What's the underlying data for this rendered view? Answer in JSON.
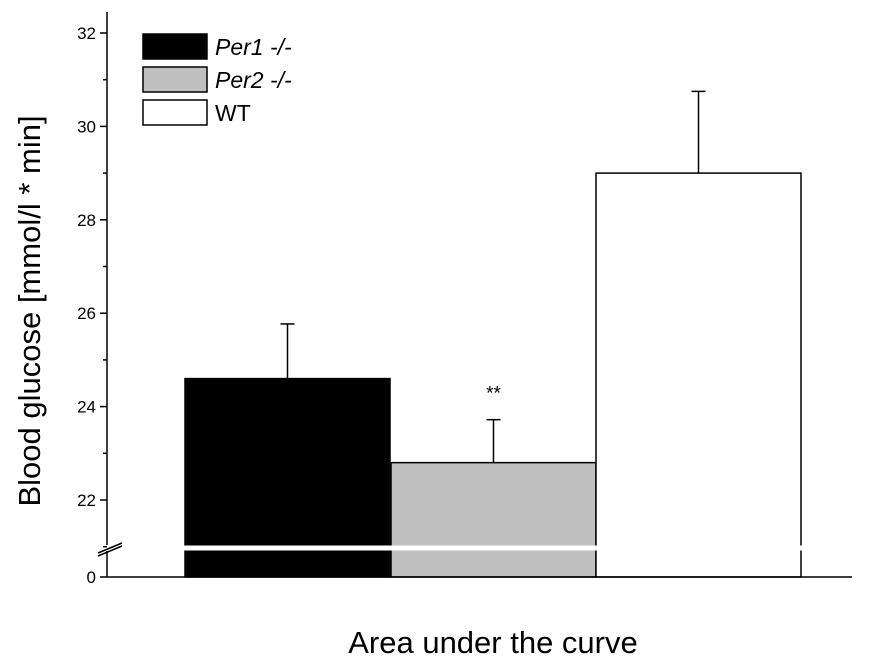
{
  "chart_data": {
    "type": "bar",
    "title": "",
    "xlabel": "Area under the curve",
    "ylabel": "Blood glucose [mmol/l * min]",
    "ylim": [
      21,
      32.5
    ],
    "axis_break": {
      "below_label": "0",
      "break_between": [
        0,
        21
      ]
    },
    "y_ticks": [
      "0",
      "22",
      "24",
      "26",
      "28",
      "30",
      "32"
    ],
    "grid": false,
    "legend_position": "top-left",
    "series": [
      {
        "name": "Per1 -/-",
        "italic": true,
        "value": 24.6,
        "error": 1.17,
        "color": "#000000",
        "annotation": ""
      },
      {
        "name": "Per2 -/-",
        "italic": true,
        "value": 22.8,
        "error": 0.92,
        "color": "#c0c0c0",
        "annotation": "**"
      },
      {
        "name": "WT",
        "italic": false,
        "value": 29.0,
        "error": 1.75,
        "color": "#ffffff",
        "annotation": ""
      }
    ]
  }
}
